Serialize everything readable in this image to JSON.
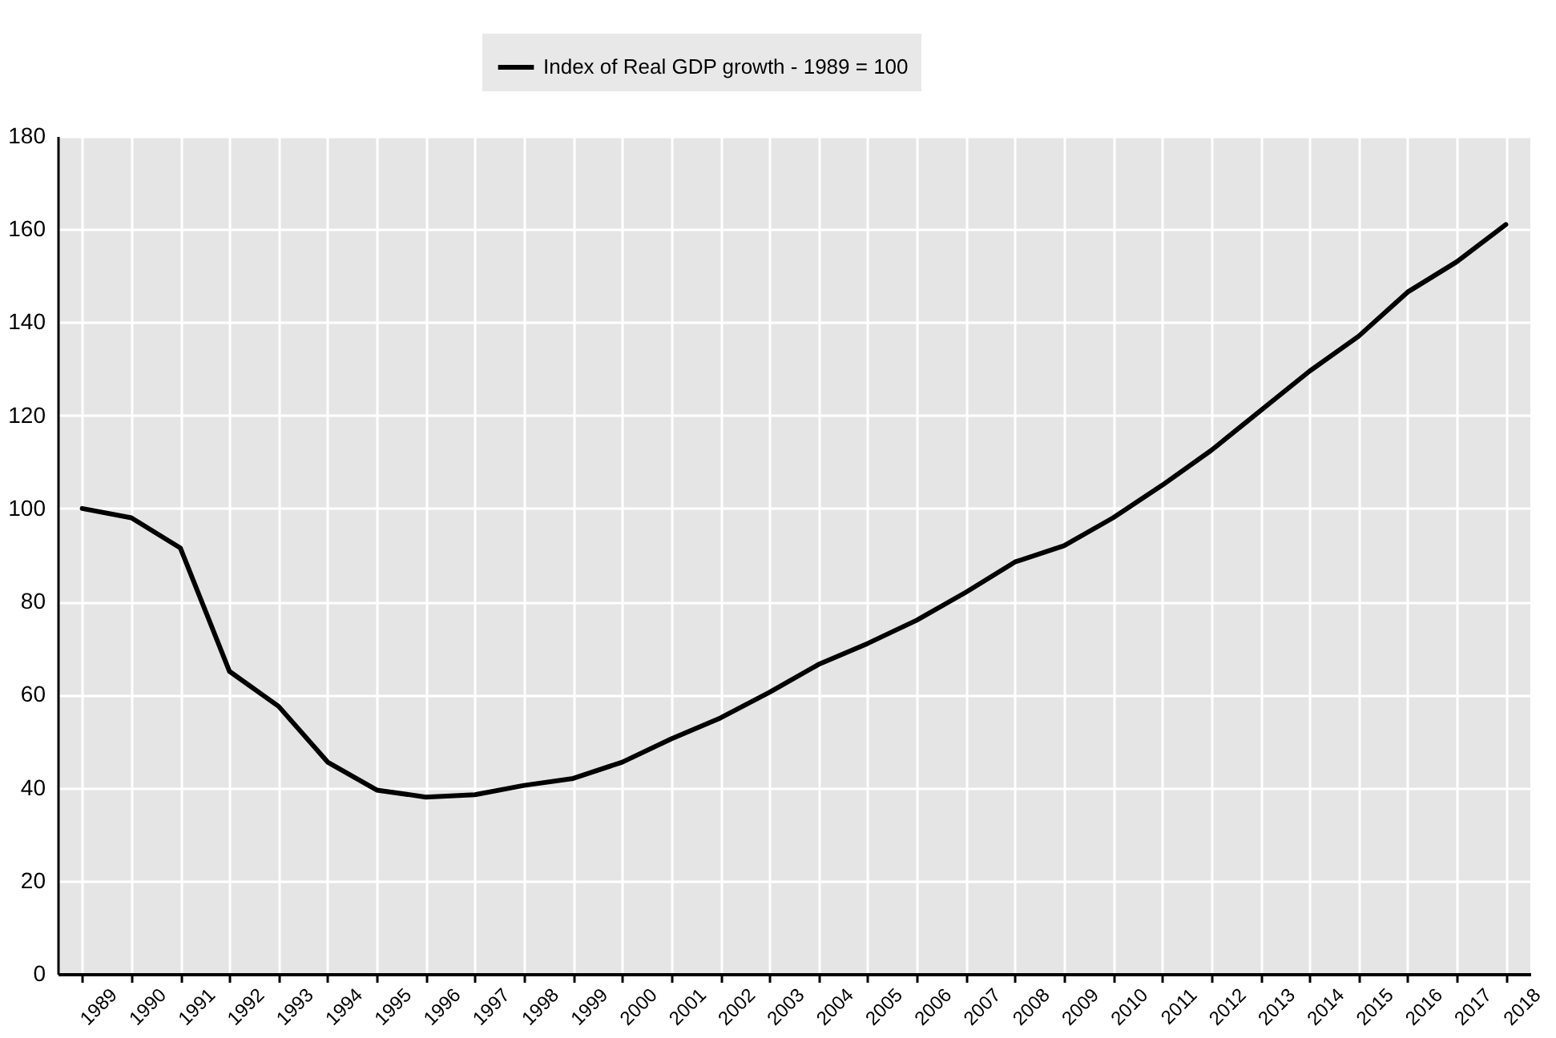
{
  "chart_data": {
    "type": "line",
    "categories": [
      "1989",
      "1990",
      "1991",
      "1992",
      "1993",
      "1994",
      "1995",
      "1996",
      "1997",
      "1998",
      "1999",
      "2000",
      "2001",
      "2002",
      "2003",
      "2004",
      "2005",
      "2006",
      "2007",
      "2008",
      "2009",
      "2010",
      "2011",
      "2012",
      "2013",
      "2014",
      "2015",
      "2016",
      "2017",
      "2018"
    ],
    "series": [
      {
        "name": "Index of Real GDP growth - 1989 = 100",
        "color": "#000000",
        "values": [
          100,
          98,
          91.5,
          65,
          57.5,
          45.5,
          39.5,
          38,
          38.5,
          40.5,
          42,
          45.5,
          50.5,
          55,
          60.5,
          66.5,
          71,
          76,
          82,
          88.5,
          92,
          98,
          105,
          112.5,
          121,
          129.5,
          137,
          146.5,
          153,
          161
        ]
      }
    ],
    "ylim": [
      0,
      180
    ],
    "yticks": [
      0,
      20,
      40,
      60,
      80,
      100,
      120,
      140,
      160,
      180
    ],
    "grid": true,
    "legend": "top",
    "marker": "none",
    "line_style": "solid"
  }
}
